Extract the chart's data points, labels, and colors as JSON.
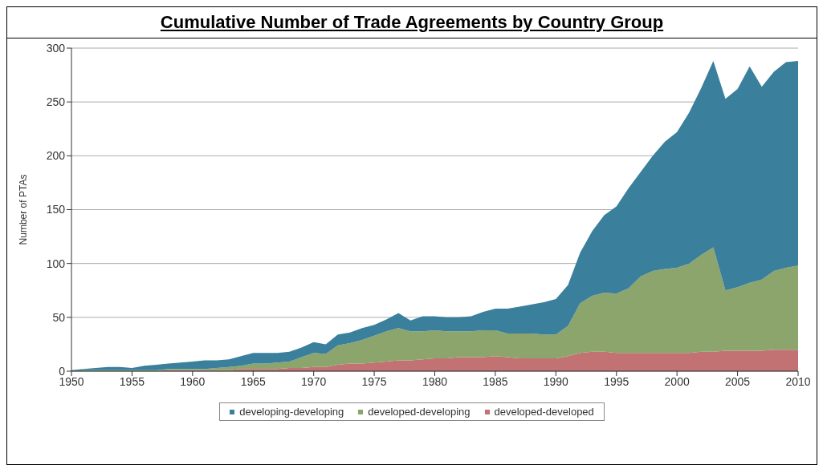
{
  "chart_data": {
    "type": "area",
    "stacked": true,
    "title": "Cumulative Number of Trade Agreements by Country Group",
    "ylabel": "Number of PTAs",
    "x": [
      1950,
      1951,
      1952,
      1953,
      1954,
      1955,
      1956,
      1957,
      1958,
      1959,
      1960,
      1961,
      1962,
      1963,
      1964,
      1965,
      1966,
      1967,
      1968,
      1969,
      1970,
      1971,
      1972,
      1973,
      1974,
      1975,
      1976,
      1977,
      1978,
      1979,
      1980,
      1981,
      1982,
      1983,
      1984,
      1985,
      1986,
      1987,
      1988,
      1989,
      1990,
      1991,
      1992,
      1993,
      1994,
      1995,
      1996,
      1997,
      1998,
      1999,
      2000,
      2001,
      2002,
      2003,
      2004,
      2005,
      2006,
      2007,
      2008,
      2009,
      2010
    ],
    "series": [
      {
        "name": "developed-developed",
        "color": "#c27272",
        "values": [
          0,
          0,
          0,
          0,
          0,
          0,
          0,
          0,
          1,
          1,
          1,
          1,
          1,
          1,
          2,
          2,
          2,
          2,
          3,
          3,
          4,
          4,
          6,
          7,
          7,
          8,
          9,
          10,
          10,
          11,
          12,
          12,
          13,
          13,
          13,
          14,
          13,
          12,
          12,
          12,
          12,
          14,
          17,
          18,
          18,
          17,
          17,
          17,
          17,
          17,
          17,
          17,
          18,
          18,
          19,
          19,
          19,
          19,
          20,
          20,
          20
        ]
      },
      {
        "name": "developed-developing",
        "color": "#8ca56c",
        "values": [
          0,
          1,
          1,
          1,
          1,
          1,
          1,
          1,
          1,
          1,
          1,
          1,
          2,
          3,
          3,
          5,
          5,
          6,
          6,
          10,
          13,
          12,
          18,
          19,
          22,
          25,
          28,
          30,
          27,
          26,
          26,
          25,
          24,
          24,
          25,
          24,
          22,
          23,
          23,
          22,
          22,
          28,
          46,
          52,
          55,
          55,
          60,
          71,
          76,
          78,
          79,
          83,
          90,
          97,
          56,
          59,
          63,
          66,
          73,
          76,
          78
        ]
      },
      {
        "name": "developing-developing",
        "color": "#3a7f9c",
        "values": [
          1,
          1,
          2,
          3,
          3,
          2,
          4,
          5,
          5,
          6,
          7,
          8,
          7,
          7,
          9,
          10,
          10,
          9,
          9,
          9,
          10,
          9,
          10,
          10,
          11,
          10,
          11,
          14,
          10,
          14,
          13,
          13,
          13,
          14,
          17,
          20,
          23,
          25,
          27,
          30,
          33,
          38,
          47,
          60,
          72,
          81,
          93,
          97,
          107,
          118,
          126,
          140,
          155,
          173,
          178,
          184,
          201,
          179,
          185,
          191,
          190
        ]
      }
    ],
    "xlim": [
      1950,
      2010
    ],
    "xticks": [
      1950,
      1955,
      1960,
      1965,
      1970,
      1975,
      1980,
      1985,
      1990,
      1995,
      2000,
      2005,
      2010
    ],
    "ylim": [
      0,
      300
    ],
    "yticks": [
      0,
      50,
      100,
      150,
      200,
      250,
      300
    ],
    "grid": "y",
    "legend": "bottom"
  }
}
